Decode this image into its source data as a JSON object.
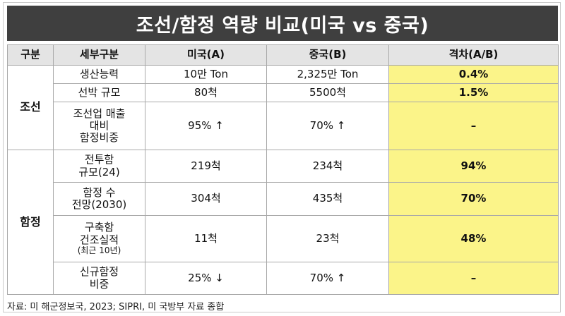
{
  "title": "조선/함정 역량 비교(미국 vs 중국)",
  "headers": {
    "group": "구분",
    "sub": "세부구분",
    "us": "미국(A)",
    "cn": "중국(B)",
    "gap": "격차(A/B)"
  },
  "groups": {
    "shipbuilding": "조선",
    "naval": "함정"
  },
  "rows": [
    {
      "sub": "생산능력",
      "us": "10만 Ton",
      "cn": "2,325만 Ton",
      "gap": "0.4%"
    },
    {
      "sub": "선박 규모",
      "us": "80척",
      "cn": "5500척",
      "gap": "1.5%"
    },
    {
      "sub_l1": "조선업 매출",
      "sub_l2": "대비",
      "sub_l3": "함정비중",
      "us": "95% ↑",
      "cn": "70% ↑",
      "gap": "–"
    },
    {
      "sub_l1": "전투함",
      "sub_l2": "규모(24)",
      "us": "219척",
      "cn": "234척",
      "gap": "94%"
    },
    {
      "sub_l1": "함정 수",
      "sub_l2": "전망(2030)",
      "us": "304척",
      "cn": "435척",
      "gap": "70%"
    },
    {
      "sub_l1": "구축함",
      "sub_l2": "건조실적",
      "sub_l3": "(최근 10년)",
      "us": "11척",
      "cn": "23척",
      "gap": "48%"
    },
    {
      "sub_l1": "신규함정",
      "sub_l2": "비중",
      "us": "25% ↓",
      "cn": "70% ↑",
      "gap": "–"
    }
  ],
  "source": "자료: 미 해군정보국, 2023; SIPRI, 미 국방부 자료 종합",
  "colors": {
    "title_bg": "#3f3f3f",
    "header_bg": "#e4e4e4",
    "highlight": "#fbf489",
    "border": "#a9a9a9"
  }
}
